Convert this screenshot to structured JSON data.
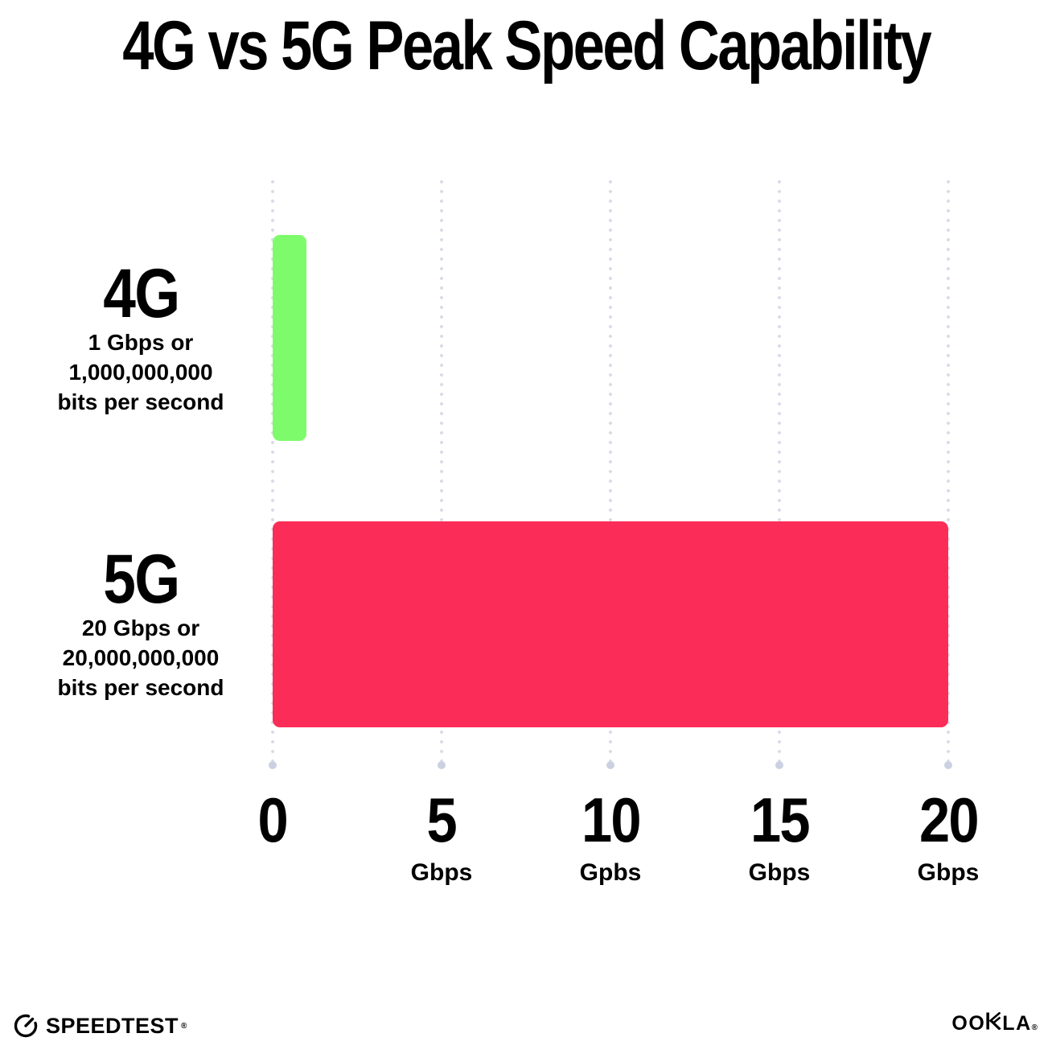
{
  "title": "4G vs 5G Peak Speed Capability",
  "rows": [
    {
      "label": "4G",
      "line1": "1 Gbps or",
      "line2": "1,000,000,000",
      "line3": "bits per second"
    },
    {
      "label": "5G",
      "line1": "20 Gbps or",
      "line2": "20,000,000,000",
      "line3": "bits per second"
    }
  ],
  "axis": {
    "ticks": [
      {
        "num": "0",
        "unit": ""
      },
      {
        "num": "5",
        "unit": "Gbps"
      },
      {
        "num": "10",
        "unit": "Gpbs"
      },
      {
        "num": "15",
        "unit": "Gbps"
      },
      {
        "num": "20",
        "unit": "Gbps"
      }
    ]
  },
  "footer": {
    "speedtest_label": "SPEEDTEST",
    "ookla_label_left": "OO",
    "ookla_label_right": "LA",
    "trademark": "®"
  },
  "colors": {
    "bar_4g": "#7EFB6A",
    "bar_5g": "#FB2D58",
    "grid_dot": "#D9DDE9",
    "grid_end_dot": "#CBD1E1",
    "text": "#000000",
    "background": "#FFFFFF"
  },
  "chart_data": {
    "type": "bar",
    "orientation": "horizontal",
    "title": "4G vs 5G Peak Speed Capability",
    "categories": [
      "4G",
      "5G"
    ],
    "category_descriptions": [
      "1 Gbps or 1,000,000,000 bits per second",
      "20 Gbps or 20,000,000,000 bits per second"
    ],
    "values": [
      1,
      20
    ],
    "unit": "Gbps",
    "bar_colors": [
      "#7EFB6A",
      "#FB2D58"
    ],
    "xlabel": "",
    "ylabel": "",
    "xlim": [
      0,
      20
    ],
    "x_tick_values": [
      0,
      5,
      10,
      15,
      20
    ],
    "x_tick_labels": [
      "0",
      "5 Gbps",
      "10 Gpbs",
      "15 Gbps",
      "20 Gbps"
    ],
    "grid": "vertical-dotted",
    "legend": "none"
  }
}
